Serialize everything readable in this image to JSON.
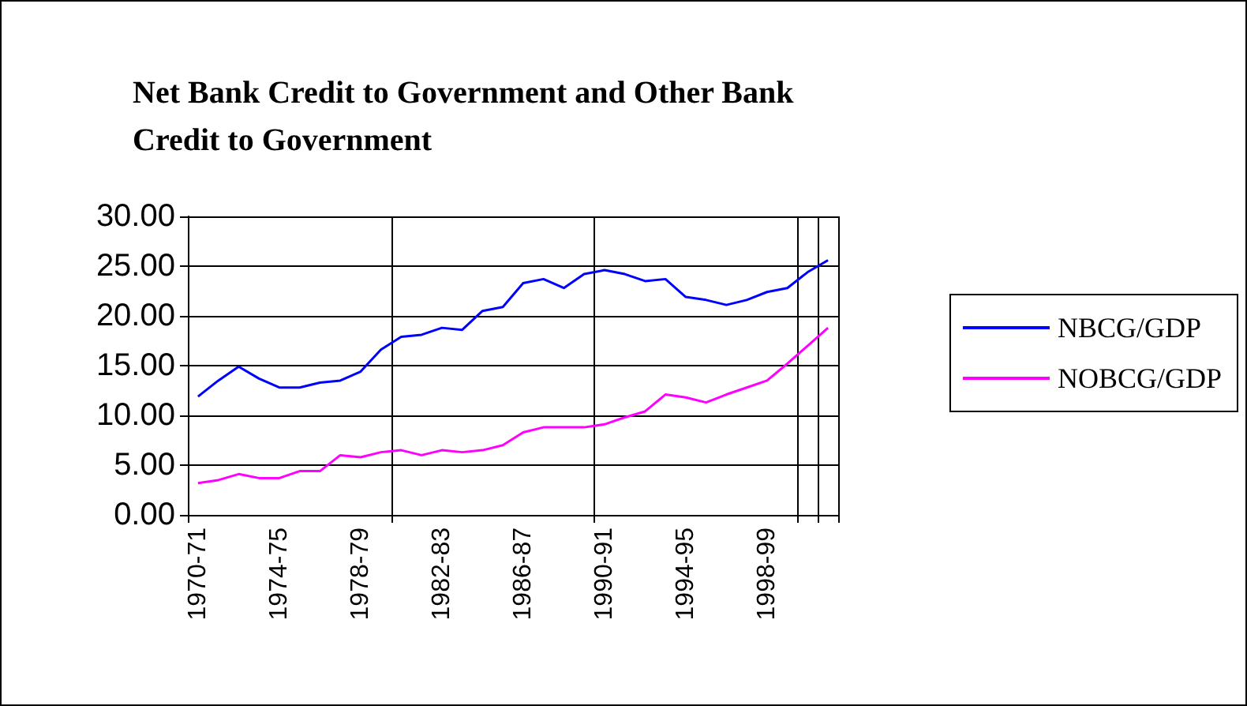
{
  "chart_data": {
    "type": "line",
    "title": "Net Bank Credit to Government and Other Bank Credit to Government",
    "categories": [
      "1970-71",
      null,
      null,
      null,
      "1974-75",
      null,
      null,
      null,
      "1978-79",
      null,
      null,
      null,
      "1982-83",
      null,
      null,
      null,
      "1986-87",
      null,
      null,
      null,
      "1990-91",
      null,
      null,
      null,
      "1994-95",
      null,
      null,
      null,
      "1998-99",
      null,
      null,
      null
    ],
    "series": [
      {
        "name": "NBCG/GDP",
        "color": "#0000ff",
        "values": [
          11.9,
          13.5,
          14.9,
          13.7,
          12.8,
          12.8,
          13.3,
          13.5,
          14.4,
          16.6,
          17.9,
          18.1,
          18.8,
          18.6,
          20.5,
          20.9,
          23.3,
          23.7,
          22.8,
          24.2,
          24.6,
          24.2,
          23.5,
          23.7,
          21.9,
          21.6,
          21.1,
          21.6,
          22.4,
          22.8,
          24.4,
          25.6
        ]
      },
      {
        "name": "NOBCG/GDP",
        "color": "#ff00ff",
        "values": [
          3.2,
          3.5,
          4.1,
          3.7,
          3.7,
          4.4,
          4.4,
          6.0,
          5.8,
          6.3,
          6.5,
          6.0,
          6.5,
          6.3,
          6.5,
          7.0,
          8.3,
          8.8,
          8.8,
          8.8,
          9.1,
          9.8,
          10.4,
          12.1,
          11.8,
          11.3,
          12.1,
          12.8,
          13.5,
          15.2,
          17.0,
          18.8
        ]
      }
    ],
    "ylim": [
      0,
      30
    ],
    "yticks": [
      {
        "value": 0,
        "label": "0.00"
      },
      {
        "value": 5,
        "label": "5.00"
      },
      {
        "value": 10,
        "label": "10.00"
      },
      {
        "value": 15,
        "label": "15.00"
      },
      {
        "value": 20,
        "label": "20.00"
      },
      {
        "value": 25,
        "label": "25.00"
      },
      {
        "value": 30,
        "label": "30.00"
      }
    ],
    "grid": true,
    "legend": "right",
    "marker": "none"
  }
}
